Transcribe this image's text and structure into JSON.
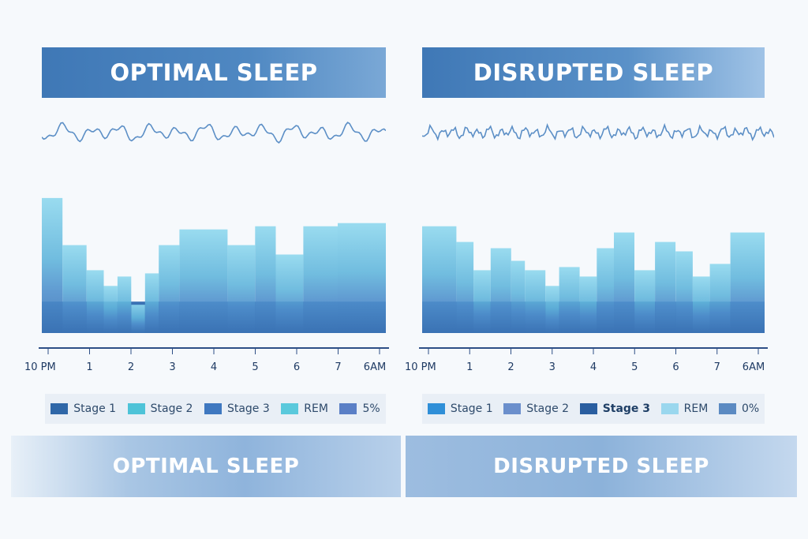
{
  "titles": {
    "left": "OPTIMAL SLEEP",
    "right": "DISRUPTED SLEEP"
  },
  "footer": {
    "left": "OPTIMAL SLEEP",
    "right": "DISRUPTED SLEEP"
  },
  "colors": {
    "stage3_deep": "#3a72b4",
    "stage2_mid": "#4f8fcc",
    "stage1_light": "#62b6dc",
    "rem_top": "#8fd8ee",
    "axis": "#2e4f86",
    "wave": "#5c8fc6"
  },
  "chart_data": [
    {
      "type": "area",
      "title": "OPTIMAL SLEEP",
      "xlabel": "",
      "ylabel": "",
      "x_ticks": [
        "10 PM",
        "1",
        "2",
        "3",
        "4",
        "5",
        "6",
        "7",
        "6AM"
      ],
      "legend": [
        {
          "label": "Stage 1",
          "color": "#2f67a8"
        },
        {
          "label": "Stage 2",
          "color": "#4ec3d8"
        },
        {
          "label": "Stage 3",
          "color": "#3f78c0"
        },
        {
          "label": "REM",
          "color": "#5ac9dc"
        },
        {
          "label": "5%",
          "color": "#5a7fc6"
        }
      ],
      "legend_position": "bottom",
      "levels": [
        [
          0.0,
          4.3
        ],
        [
          0.6,
          2.8
        ],
        [
          1.3,
          2.0
        ],
        [
          1.8,
          1.5
        ],
        [
          2.2,
          1.8
        ],
        [
          2.6,
          0.9
        ],
        [
          3.0,
          1.9
        ],
        [
          3.4,
          2.8
        ],
        [
          4.0,
          3.3
        ],
        [
          5.4,
          2.8
        ],
        [
          6.2,
          3.4
        ],
        [
          6.8,
          2.5
        ],
        [
          7.6,
          3.4
        ],
        [
          8.6,
          3.5
        ],
        [
          10.0,
          3.5
        ]
      ],
      "x_domain": [
        0,
        10
      ],
      "y_domain": [
        0,
        5
      ]
    },
    {
      "type": "area",
      "title": "DISRUPTED SLEEP",
      "xlabel": "",
      "ylabel": "",
      "x_ticks": [
        "10 PM",
        "1",
        "2",
        "3",
        "4",
        "5",
        "6",
        "7",
        "6AM"
      ],
      "legend": [
        {
          "label": "Stage 1",
          "color": "#2f8fd8"
        },
        {
          "label": "Stage 2",
          "color": "#6b8fcc"
        },
        {
          "label": "Stage 3",
          "color": "#2a5ea0",
          "bold": true
        },
        {
          "label": "REM",
          "color": "#9ad7ee"
        },
        {
          "label": "0%",
          "color": "#5b8ac2"
        }
      ],
      "legend_position": "bottom",
      "levels": [
        [
          0.0,
          3.4
        ],
        [
          1.0,
          2.9
        ],
        [
          1.5,
          2.0
        ],
        [
          2.0,
          2.7
        ],
        [
          2.6,
          2.3
        ],
        [
          3.0,
          2.0
        ],
        [
          3.6,
          1.5
        ],
        [
          4.0,
          2.1
        ],
        [
          4.6,
          1.8
        ],
        [
          5.1,
          2.7
        ],
        [
          5.6,
          3.2
        ],
        [
          6.2,
          2.0
        ],
        [
          6.8,
          2.9
        ],
        [
          7.4,
          2.6
        ],
        [
          7.9,
          1.8
        ],
        [
          8.4,
          2.2
        ],
        [
          9.0,
          3.2
        ],
        [
          10.0,
          3.2
        ]
      ],
      "x_domain": [
        0,
        10
      ],
      "y_domain": [
        0,
        5
      ]
    }
  ]
}
